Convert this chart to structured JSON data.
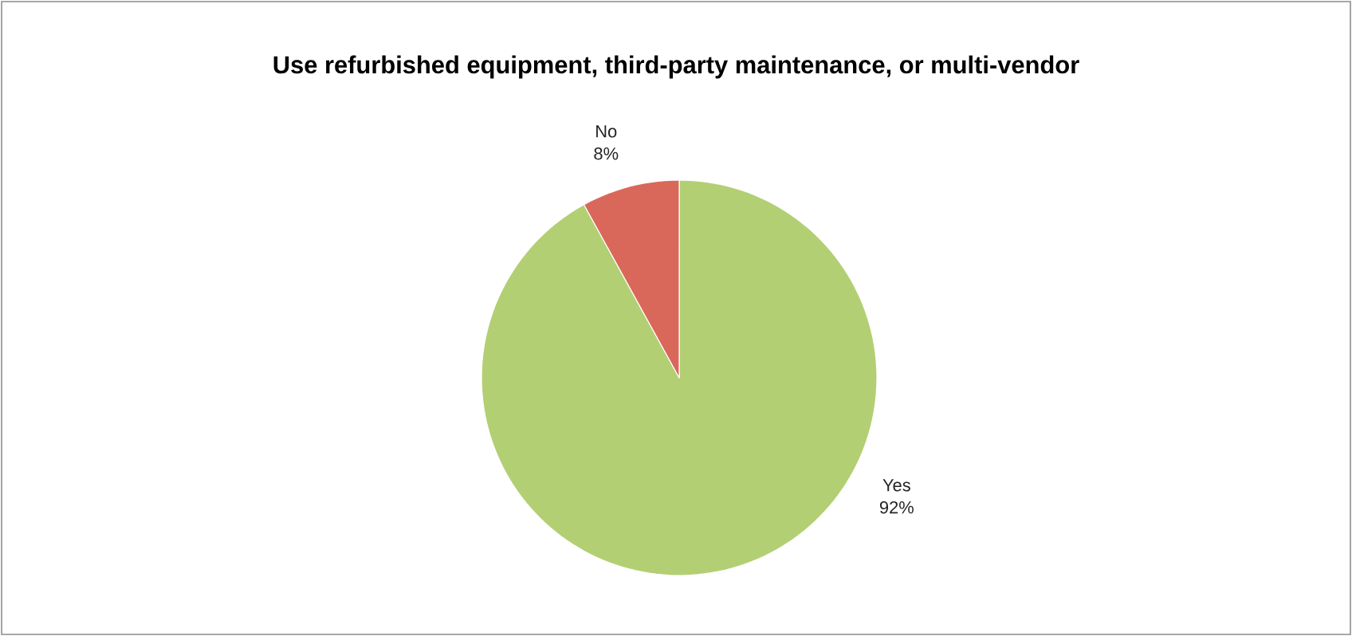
{
  "chart_data": {
    "type": "pie",
    "title": "Use refurbished equipment, third-party maintenance, or multi-vendor",
    "categories": [
      "Yes",
      "No"
    ],
    "values": [
      92,
      8
    ],
    "value_labels": [
      "92%",
      "8%"
    ],
    "colors": [
      "#b3cf74",
      "#d9685a"
    ]
  }
}
